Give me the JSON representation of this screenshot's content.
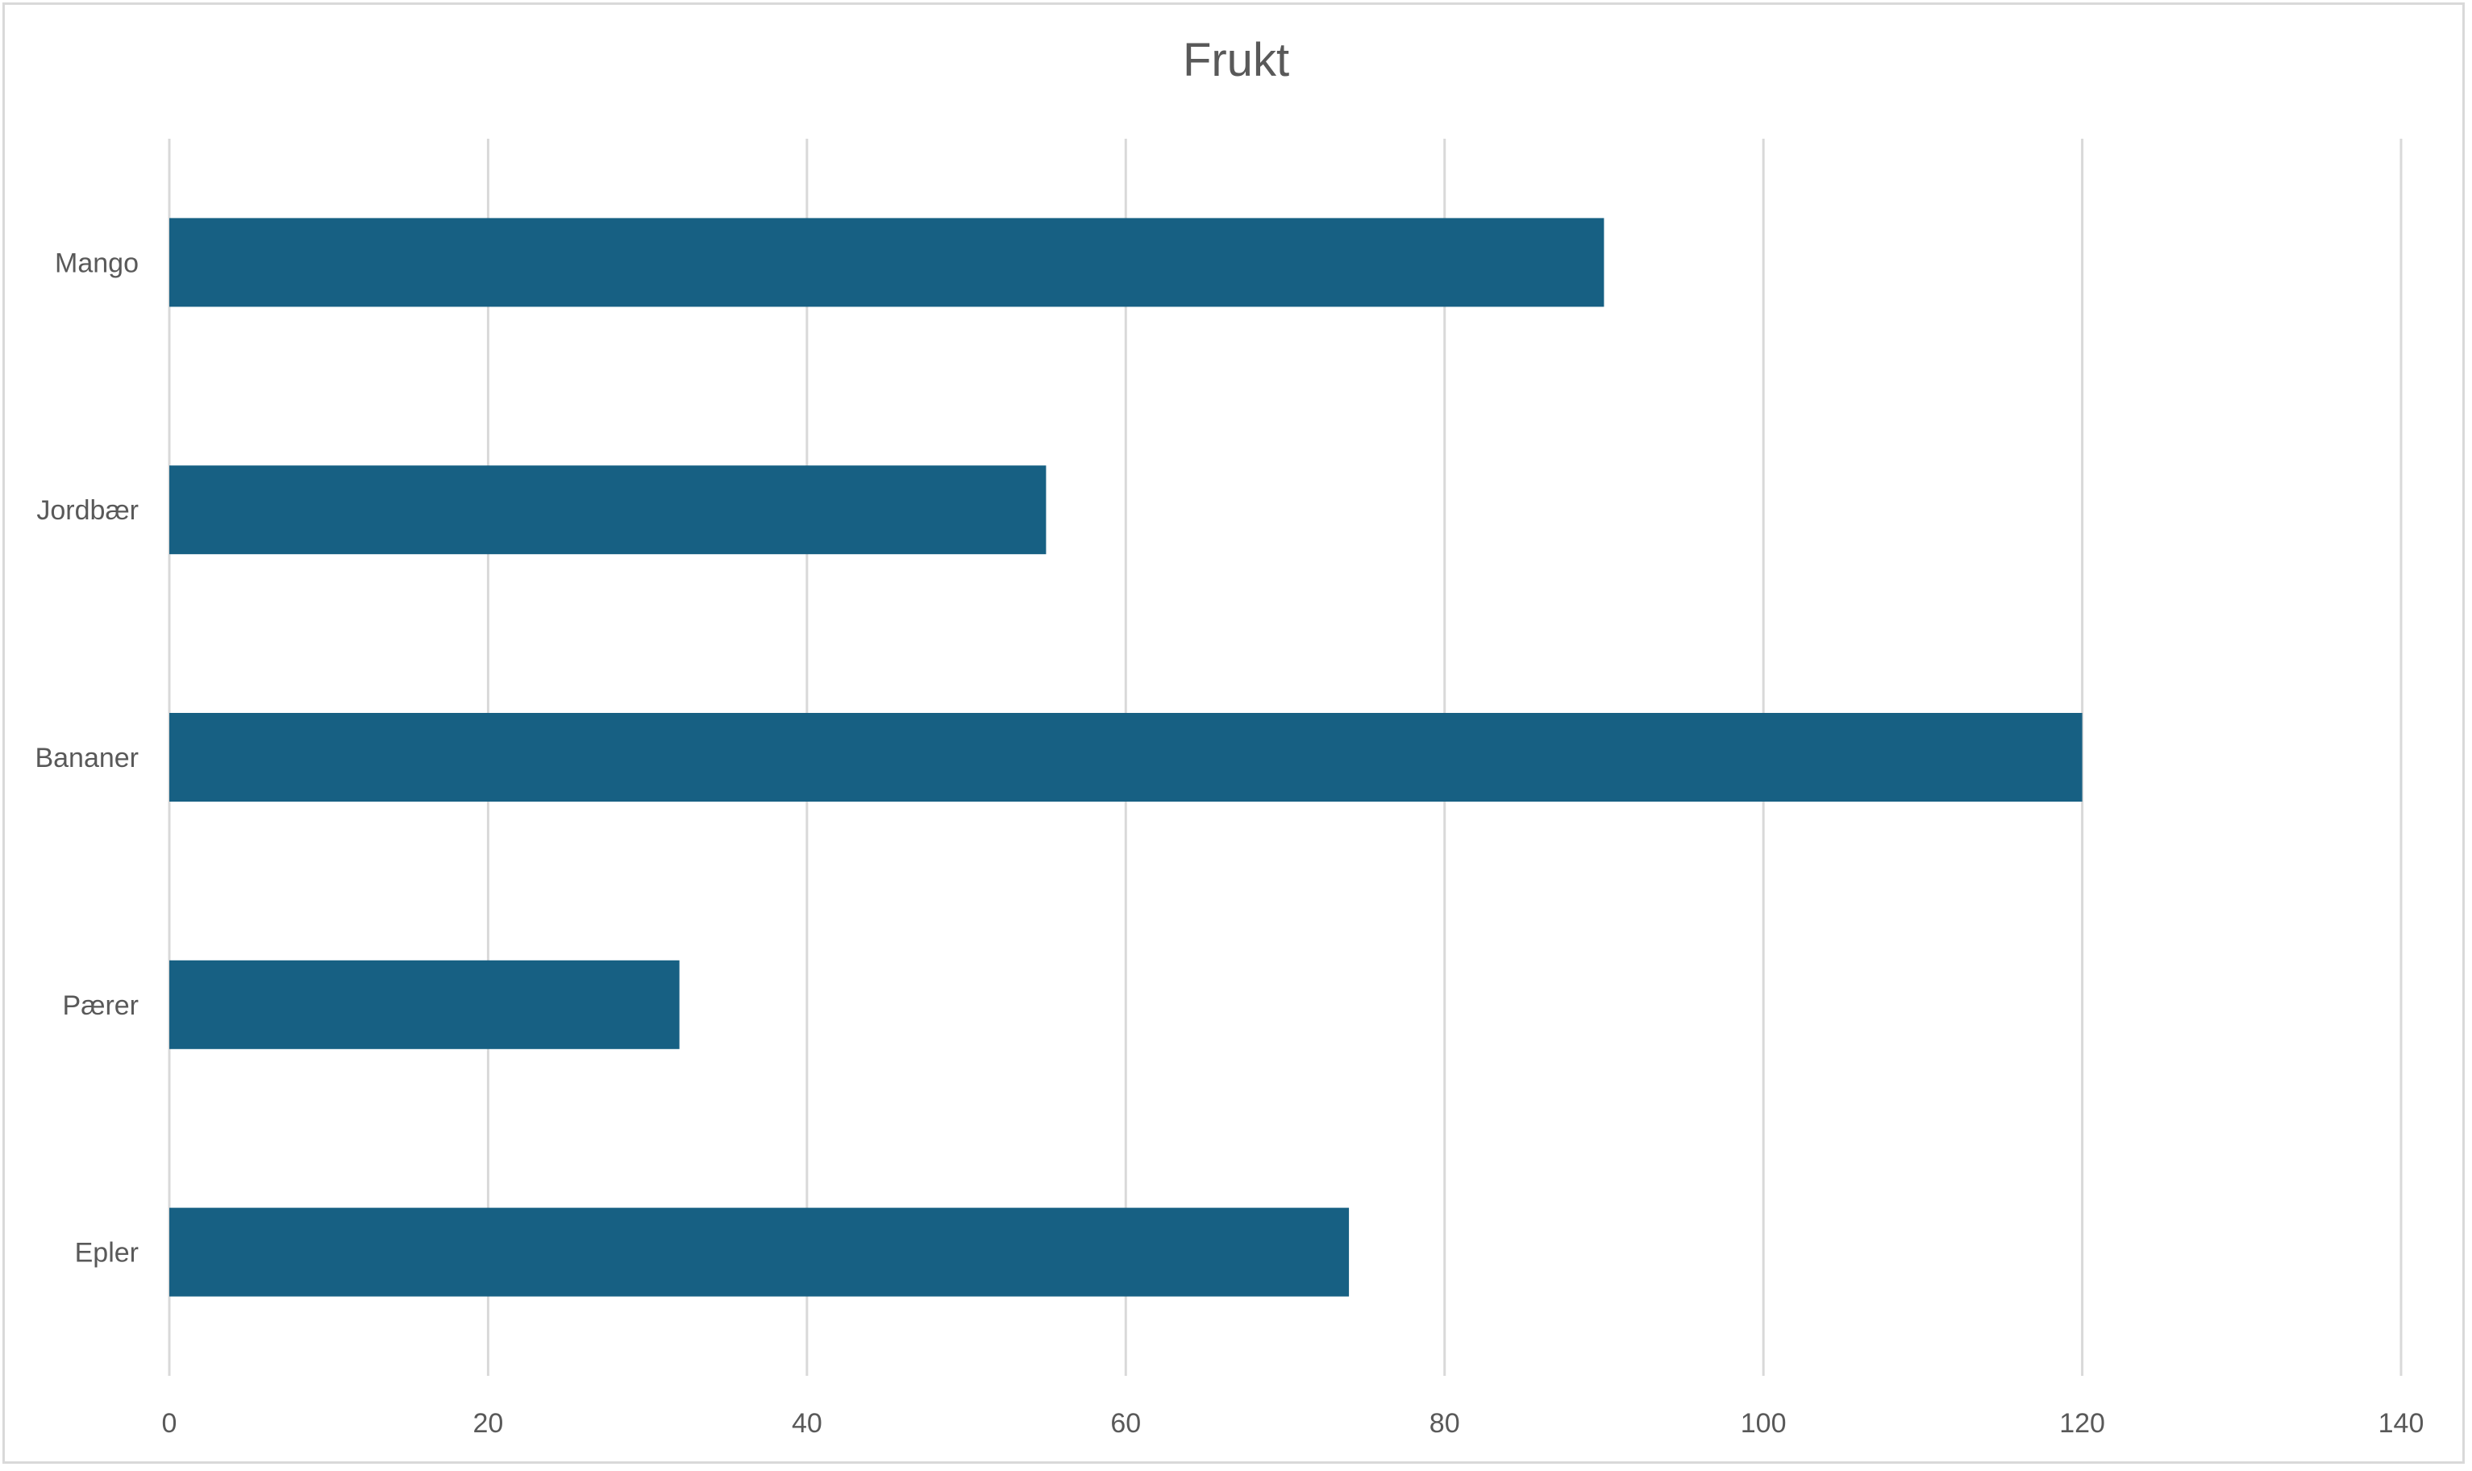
{
  "chart_data": {
    "type": "bar",
    "orientation": "horizontal",
    "title": "Frukt",
    "xlabel": "",
    "ylabel": "",
    "categories": [
      "Mango",
      "Jordbær",
      "Bananer",
      "Pærer",
      "Epler"
    ],
    "values": [
      90,
      55,
      120,
      32,
      74
    ],
    "xlim": [
      0,
      140
    ],
    "x_ticks": [
      "0",
      "20",
      "40",
      "60",
      "80",
      "100",
      "120",
      "140"
    ],
    "grid": "vertical",
    "legend": "none",
    "colors": {
      "bar": "#176083",
      "grid": "#d9d9d9",
      "text": "#595959"
    }
  }
}
